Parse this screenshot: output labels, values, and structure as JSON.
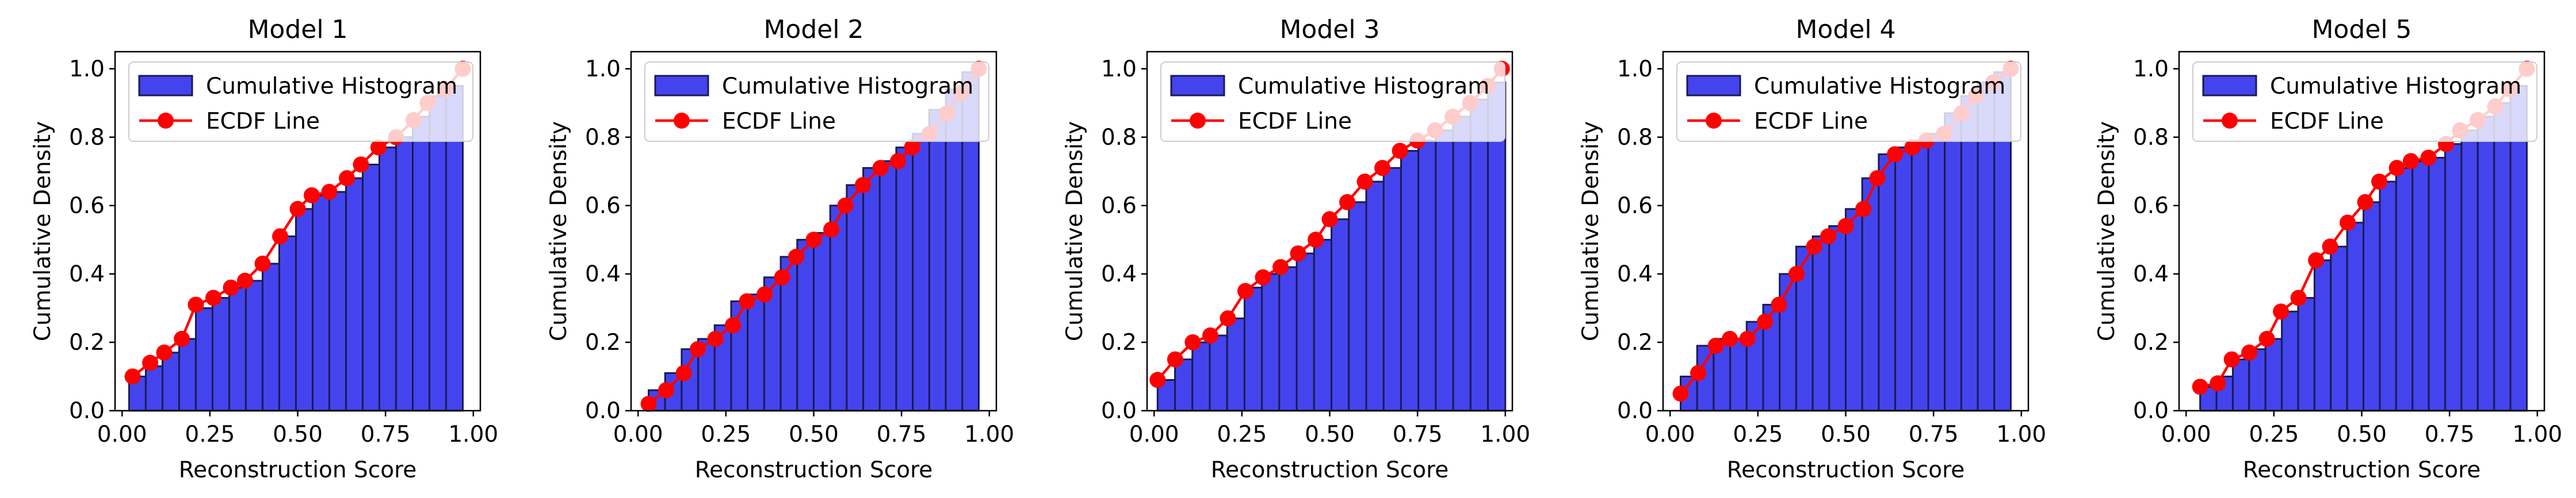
{
  "chart_data": [
    {
      "type": "bar",
      "title": "Model 1",
      "xlabel": "Reconstruction Score",
      "ylabel": "Cumulative Density",
      "xlim": [
        -0.02,
        1.02
      ],
      "ylim": [
        0.0,
        1.05
      ],
      "xticks": [
        "0.00",
        "0.25",
        "0.50",
        "0.75",
        "1.00"
      ],
      "yticks": [
        "0.0",
        "0.2",
        "0.4",
        "0.6",
        "0.8",
        "1.0"
      ],
      "legend": {
        "position": "upper-left",
        "entries": [
          "Cumulative Histogram",
          "ECDF Line"
        ]
      },
      "bin_edges": [
        0.02,
        0.0675,
        0.115,
        0.1625,
        0.21,
        0.2575,
        0.305,
        0.3525,
        0.4,
        0.4475,
        0.495,
        0.5425,
        0.59,
        0.6375,
        0.685,
        0.7325,
        0.78,
        0.8275,
        0.875,
        0.9225,
        0.97
      ],
      "series": [
        {
          "name": "Cumulative Histogram",
          "kind": "bar",
          "values": [
            0.1,
            0.13,
            0.17,
            0.21,
            0.3,
            0.33,
            0.36,
            0.38,
            0.43,
            0.51,
            0.59,
            0.63,
            0.64,
            0.68,
            0.72,
            0.77,
            0.8,
            0.86,
            0.92,
            0.95
          ]
        },
        {
          "name": "ECDF Line",
          "kind": "line",
          "x": [
            0.03,
            0.08,
            0.12,
            0.17,
            0.21,
            0.26,
            0.31,
            0.35,
            0.4,
            0.45,
            0.5,
            0.54,
            0.59,
            0.64,
            0.68,
            0.73,
            0.78,
            0.83,
            0.87,
            0.92,
            0.97
          ],
          "y": [
            0.1,
            0.14,
            0.17,
            0.21,
            0.31,
            0.33,
            0.36,
            0.38,
            0.43,
            0.51,
            0.59,
            0.63,
            0.64,
            0.68,
            0.72,
            0.77,
            0.8,
            0.85,
            0.9,
            0.94,
            1.0
          ]
        }
      ]
    },
    {
      "type": "bar",
      "title": "Model 2",
      "xlabel": "Reconstruction Score",
      "ylabel": "Cumulative Density",
      "xlim": [
        -0.02,
        1.02
      ],
      "ylim": [
        0.0,
        1.05
      ],
      "xticks": [
        "0.00",
        "0.25",
        "0.50",
        "0.75",
        "1.00"
      ],
      "yticks": [
        "0.0",
        "0.2",
        "0.4",
        "0.6",
        "0.8",
        "1.0"
      ],
      "legend": {
        "position": "upper-left",
        "entries": [
          "Cumulative Histogram",
          "ECDF Line"
        ]
      },
      "bin_edges": [
        0.03,
        0.077,
        0.124,
        0.171,
        0.218,
        0.265,
        0.312,
        0.359,
        0.406,
        0.453,
        0.5,
        0.547,
        0.594,
        0.641,
        0.688,
        0.735,
        0.782,
        0.829,
        0.876,
        0.923,
        0.97
      ],
      "series": [
        {
          "name": "Cumulative Histogram",
          "kind": "bar",
          "values": [
            0.06,
            0.11,
            0.18,
            0.21,
            0.25,
            0.32,
            0.34,
            0.39,
            0.45,
            0.5,
            0.52,
            0.6,
            0.66,
            0.71,
            0.73,
            0.77,
            0.81,
            0.88,
            0.94,
            0.99
          ]
        },
        {
          "name": "ECDF Line",
          "kind": "line",
          "x": [
            0.03,
            0.08,
            0.13,
            0.17,
            0.22,
            0.27,
            0.31,
            0.36,
            0.41,
            0.45,
            0.5,
            0.55,
            0.59,
            0.64,
            0.69,
            0.74,
            0.78,
            0.83,
            0.88,
            0.92,
            0.97
          ],
          "y": [
            0.02,
            0.06,
            0.11,
            0.18,
            0.21,
            0.25,
            0.32,
            0.34,
            0.39,
            0.45,
            0.5,
            0.53,
            0.6,
            0.66,
            0.71,
            0.73,
            0.77,
            0.81,
            0.87,
            0.93,
            1.0
          ]
        }
      ]
    },
    {
      "type": "bar",
      "title": "Model 3",
      "xlabel": "Reconstruction Score",
      "ylabel": "Cumulative Density",
      "xlim": [
        -0.02,
        1.02
      ],
      "ylim": [
        0.0,
        1.05
      ],
      "xticks": [
        "0.00",
        "0.25",
        "0.50",
        "0.75",
        "1.00"
      ],
      "yticks": [
        "0.0",
        "0.2",
        "0.4",
        "0.6",
        "0.8",
        "1.0"
      ],
      "legend": {
        "position": "upper-left",
        "entries": [
          "Cumulative Histogram",
          "ECDF Line"
        ]
      },
      "bin_edges": [
        0.01,
        0.0595,
        0.109,
        0.1585,
        0.208,
        0.2575,
        0.307,
        0.3565,
        0.406,
        0.4555,
        0.505,
        0.5545,
        0.604,
        0.6535,
        0.703,
        0.7525,
        0.802,
        0.8515,
        0.901,
        0.9505,
        1.0
      ],
      "series": [
        {
          "name": "Cumulative Histogram",
          "kind": "bar",
          "values": [
            0.09,
            0.15,
            0.2,
            0.22,
            0.27,
            0.36,
            0.4,
            0.42,
            0.46,
            0.5,
            0.56,
            0.61,
            0.67,
            0.71,
            0.76,
            0.79,
            0.82,
            0.86,
            0.91,
            0.96
          ]
        },
        {
          "name": "ECDF Line",
          "kind": "line",
          "x": [
            0.01,
            0.06,
            0.11,
            0.16,
            0.21,
            0.26,
            0.31,
            0.36,
            0.41,
            0.46,
            0.5,
            0.55,
            0.6,
            0.65,
            0.7,
            0.75,
            0.8,
            0.85,
            0.9,
            0.95,
            0.99
          ],
          "y": [
            0.09,
            0.15,
            0.2,
            0.22,
            0.27,
            0.35,
            0.39,
            0.42,
            0.46,
            0.5,
            0.56,
            0.61,
            0.67,
            0.71,
            0.76,
            0.79,
            0.82,
            0.86,
            0.9,
            0.95,
            1.0
          ]
        }
      ]
    },
    {
      "type": "bar",
      "title": "Model 4",
      "xlabel": "Reconstruction Score",
      "ylabel": "Cumulative Density",
      "xlim": [
        -0.02,
        1.02
      ],
      "ylim": [
        0.0,
        1.05
      ],
      "xticks": [
        "0.00",
        "0.25",
        "0.50",
        "0.75",
        "1.00"
      ],
      "yticks": [
        "0.0",
        "0.2",
        "0.4",
        "0.6",
        "0.8",
        "1.0"
      ],
      "legend": {
        "position": "upper-left",
        "entries": [
          "Cumulative Histogram",
          "ECDF Line"
        ]
      },
      "bin_edges": [
        0.03,
        0.077,
        0.124,
        0.171,
        0.218,
        0.265,
        0.312,
        0.359,
        0.406,
        0.453,
        0.5,
        0.547,
        0.594,
        0.641,
        0.688,
        0.735,
        0.782,
        0.829,
        0.876,
        0.923,
        0.97
      ],
      "series": [
        {
          "name": "Cumulative Histogram",
          "kind": "bar",
          "values": [
            0.1,
            0.19,
            0.21,
            0.21,
            0.26,
            0.31,
            0.4,
            0.48,
            0.51,
            0.54,
            0.59,
            0.68,
            0.75,
            0.77,
            0.79,
            0.81,
            0.87,
            0.92,
            0.96,
            0.99
          ]
        },
        {
          "name": "ECDF Line",
          "kind": "line",
          "x": [
            0.03,
            0.08,
            0.13,
            0.17,
            0.22,
            0.27,
            0.31,
            0.36,
            0.41,
            0.45,
            0.5,
            0.55,
            0.59,
            0.64,
            0.69,
            0.73,
            0.78,
            0.83,
            0.87,
            0.92,
            0.97
          ],
          "y": [
            0.05,
            0.11,
            0.19,
            0.21,
            0.21,
            0.26,
            0.31,
            0.4,
            0.48,
            0.51,
            0.54,
            0.59,
            0.68,
            0.75,
            0.77,
            0.79,
            0.81,
            0.87,
            0.92,
            0.96,
            1.0
          ]
        }
      ]
    },
    {
      "type": "bar",
      "title": "Model 5",
      "xlabel": "Reconstruction Score",
      "ylabel": "Cumulative Density",
      "xlim": [
        -0.02,
        1.02
      ],
      "ylim": [
        0.0,
        1.05
      ],
      "xticks": [
        "0.00",
        "0.25",
        "0.50",
        "0.75",
        "1.00"
      ],
      "yticks": [
        "0.0",
        "0.2",
        "0.4",
        "0.6",
        "0.8",
        "1.0"
      ],
      "legend": {
        "position": "upper-left",
        "entries": [
          "Cumulative Histogram",
          "ECDF Line"
        ]
      },
      "bin_edges": [
        0.04,
        0.0865,
        0.133,
        0.1795,
        0.226,
        0.2725,
        0.319,
        0.3655,
        0.412,
        0.4585,
        0.505,
        0.5515,
        0.598,
        0.6445,
        0.691,
        0.7375,
        0.784,
        0.8305,
        0.877,
        0.9235,
        0.97
      ],
      "series": [
        {
          "name": "Cumulative Histogram",
          "kind": "bar",
          "values": [
            0.07,
            0.1,
            0.15,
            0.18,
            0.21,
            0.29,
            0.33,
            0.44,
            0.48,
            0.55,
            0.61,
            0.67,
            0.71,
            0.73,
            0.74,
            0.78,
            0.82,
            0.86,
            0.9,
            0.95
          ]
        },
        {
          "name": "ECDF Line",
          "kind": "line",
          "x": [
            0.04,
            0.09,
            0.13,
            0.18,
            0.23,
            0.27,
            0.32,
            0.37,
            0.41,
            0.46,
            0.51,
            0.55,
            0.6,
            0.64,
            0.69,
            0.74,
            0.78,
            0.83,
            0.88,
            0.92,
            0.97
          ],
          "y": [
            0.07,
            0.08,
            0.15,
            0.17,
            0.21,
            0.29,
            0.33,
            0.44,
            0.48,
            0.55,
            0.61,
            0.67,
            0.71,
            0.73,
            0.74,
            0.78,
            0.82,
            0.85,
            0.89,
            0.94,
            1.0
          ]
        }
      ]
    }
  ],
  "colors": {
    "bar_fill": "#4444ee",
    "bar_edge": "#1a1a55",
    "line": "#ff0000",
    "axes": "#000000",
    "legend_edge": "#cccccc"
  }
}
